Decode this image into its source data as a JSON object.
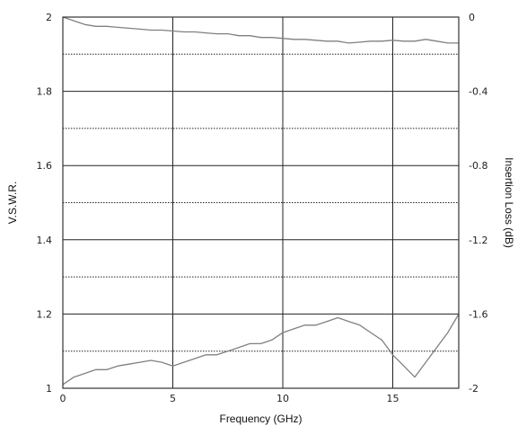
{
  "chart_data": {
    "type": "line",
    "title": "",
    "xlabel": "Frequency (GHz)",
    "ylabel": "V.S.W.R.",
    "y2label": "Insertion Loss (dB)",
    "xlim": [
      0,
      18
    ],
    "ylim": [
      1,
      2
    ],
    "y2lim": [
      -2,
      0
    ],
    "x_ticks": [
      0,
      5,
      10,
      15
    ],
    "y_ticks": [
      1,
      1.2,
      1.4,
      1.6,
      1.8,
      2
    ],
    "y2_ticks": [
      0,
      -0.4,
      -0.8,
      -1.2,
      -1.6,
      -2
    ],
    "x_tick_labels": [
      "0",
      "5",
      "10",
      "15"
    ],
    "y_tick_labels": [
      "1",
      "1.2",
      "1.4",
      "1.6",
      "1.8",
      "2"
    ],
    "y2_tick_labels": [
      "0",
      "-0.4",
      "-0.8",
      "-1.2",
      "-1.6",
      "-2"
    ],
    "grid": true,
    "line_color": "#808080",
    "series": [
      {
        "axis": "y",
        "x": [
          0,
          0.5,
          1,
          1.5,
          2,
          2.5,
          3,
          3.5,
          4,
          4.5,
          5,
          5.5,
          6,
          6.5,
          7,
          7.5,
          8,
          8.5,
          9,
          9.5,
          10,
          10.5,
          11,
          11.5,
          12,
          12.5,
          13,
          13.5,
          14,
          14.5,
          15,
          15.5,
          16,
          16.5,
          17,
          17.5,
          18
        ],
        "values": [
          1.01,
          1.03,
          1.04,
          1.05,
          1.05,
          1.06,
          1.065,
          1.07,
          1.075,
          1.07,
          1.06,
          1.07,
          1.08,
          1.09,
          1.09,
          1.1,
          1.11,
          1.12,
          1.12,
          1.13,
          1.15,
          1.16,
          1.17,
          1.17,
          1.18,
          1.19,
          1.18,
          1.17,
          1.15,
          1.13,
          1.09,
          1.06,
          1.03,
          1.07,
          1.11,
          1.15,
          1.2
        ]
      },
      {
        "axis": "y2",
        "x": [
          0,
          0.5,
          1,
          1.5,
          2,
          2.5,
          3,
          3.5,
          4,
          4.5,
          5,
          5.5,
          6,
          6.5,
          7,
          7.5,
          8,
          8.5,
          9,
          9.5,
          10,
          10.5,
          11,
          11.5,
          12,
          12.5,
          13,
          13.5,
          14,
          14.5,
          15,
          15.5,
          16,
          16.5,
          17,
          17.5,
          18
        ],
        "values": [
          0,
          -0.02,
          -0.04,
          -0.05,
          -0.05,
          -0.055,
          -0.06,
          -0.065,
          -0.07,
          -0.07,
          -0.075,
          -0.08,
          -0.08,
          -0.085,
          -0.09,
          -0.09,
          -0.1,
          -0.1,
          -0.11,
          -0.11,
          -0.115,
          -0.12,
          -0.12,
          -0.125,
          -0.13,
          -0.13,
          -0.14,
          -0.135,
          -0.13,
          -0.13,
          -0.125,
          -0.13,
          -0.13,
          -0.12,
          -0.13,
          -0.14,
          -0.14
        ]
      }
    ]
  }
}
